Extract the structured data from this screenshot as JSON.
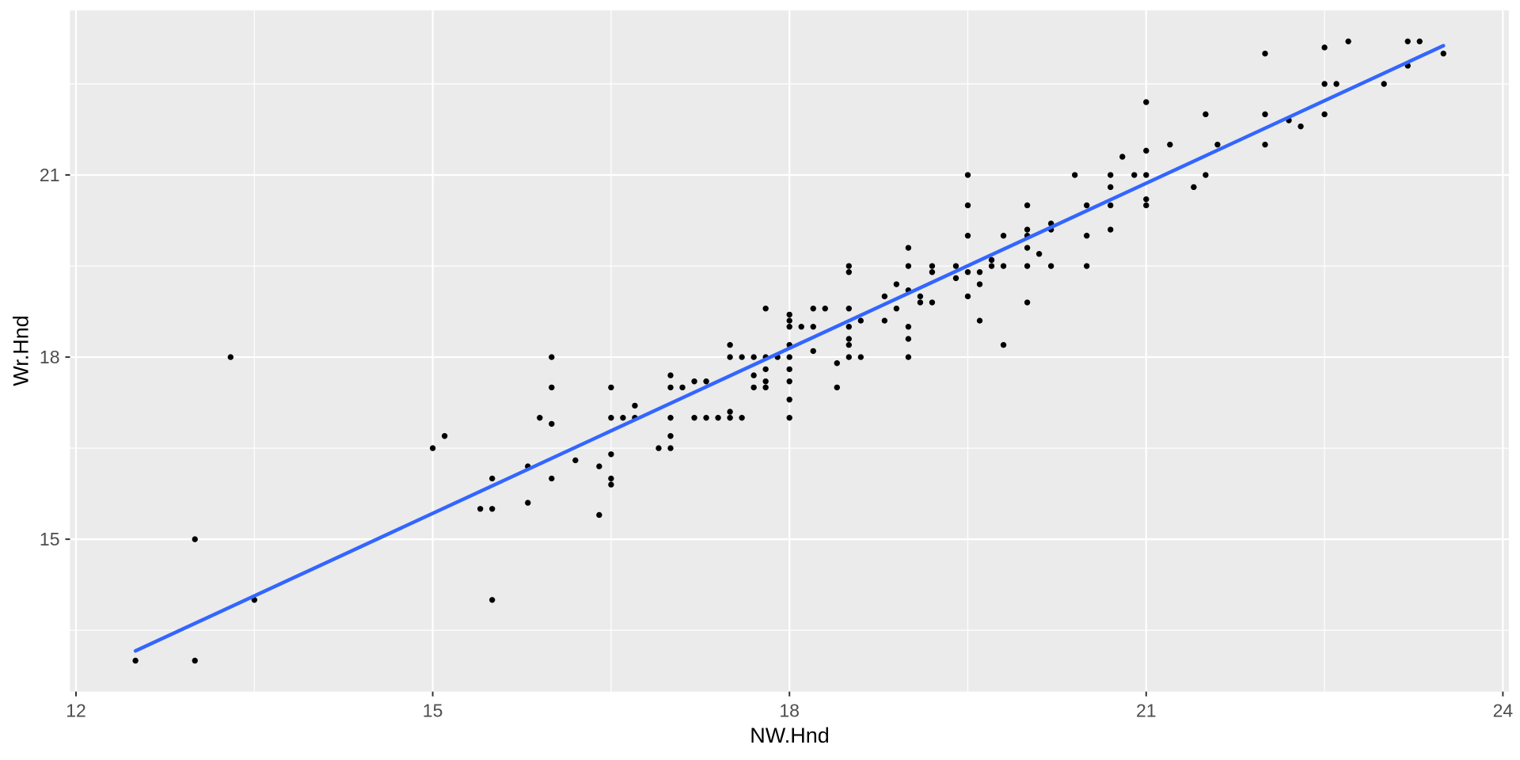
{
  "figure": {
    "background": "#FFFFFF"
  },
  "chart_data": {
    "type": "scatter",
    "title": "",
    "xlabel": "NW.Hnd",
    "ylabel": "Wr.Hnd",
    "x_breaks": [
      12,
      15,
      18,
      21,
      24
    ],
    "x_tick_labels": [
      "12",
      "15",
      "18",
      "21",
      "24"
    ],
    "x_minor_breaks": [
      13.5,
      16.5,
      19.5,
      22.5
    ],
    "y_breaks": [
      15,
      18,
      21
    ],
    "y_tick_labels": [
      "15",
      "18",
      "21"
    ],
    "y_minor_breaks": [
      13.5,
      16.5,
      19.5,
      22.5
    ],
    "xlim": [
      11.95,
      24.05
    ],
    "ylim": [
      12.49,
      23.71
    ],
    "grid": "on",
    "legend": "none",
    "points": [
      [
        12.5,
        13.0
      ],
      [
        13.0,
        13.0
      ],
      [
        13.5,
        14.0
      ],
      [
        13.0,
        15.0
      ],
      [
        13.3,
        18.0
      ],
      [
        15.0,
        16.5
      ],
      [
        15.1,
        16.7
      ],
      [
        15.4,
        15.5
      ],
      [
        15.5,
        15.5
      ],
      [
        15.5,
        16.0
      ],
      [
        15.8,
        16.2
      ],
      [
        15.8,
        15.6
      ],
      [
        16.0,
        16.0
      ],
      [
        15.5,
        14.0
      ],
      [
        16.4,
        15.4
      ],
      [
        16.2,
        16.3
      ],
      [
        16.4,
        16.2
      ],
      [
        16.5,
        16.4
      ],
      [
        16.5,
        16.0
      ],
      [
        16.5,
        15.9
      ],
      [
        16.9,
        16.5
      ],
      [
        17.0,
        16.5
      ],
      [
        17.0,
        16.7
      ],
      [
        17.0,
        17.0
      ],
      [
        16.0,
        16.9
      ],
      [
        16.5,
        17.0
      ],
      [
        16.6,
        17.0
      ],
      [
        16.7,
        17.0
      ],
      [
        16.7,
        17.2
      ],
      [
        16.5,
        17.5
      ],
      [
        15.9,
        17.0
      ],
      [
        16.0,
        17.5
      ],
      [
        16.0,
        18.0
      ],
      [
        17.0,
        17.5
      ],
      [
        17.0,
        17.7
      ],
      [
        17.1,
        17.5
      ],
      [
        17.2,
        17.6
      ],
      [
        17.3,
        17.6
      ],
      [
        17.2,
        17.0
      ],
      [
        17.3,
        17.0
      ],
      [
        17.4,
        17.0
      ],
      [
        17.5,
        17.1
      ],
      [
        17.5,
        17.0
      ],
      [
        17.6,
        17.0
      ],
      [
        17.7,
        17.5
      ],
      [
        17.7,
        17.7
      ],
      [
        17.8,
        17.8
      ],
      [
        17.8,
        17.6
      ],
      [
        17.8,
        17.5
      ],
      [
        17.5,
        18.2
      ],
      [
        17.5,
        18.0
      ],
      [
        17.6,
        18.0
      ],
      [
        17.7,
        18.0
      ],
      [
        17.8,
        18.0
      ],
      [
        17.9,
        18.0
      ],
      [
        18.0,
        18.2
      ],
      [
        18.0,
        18.0
      ],
      [
        18.0,
        17.8
      ],
      [
        18.0,
        17.6
      ],
      [
        18.0,
        17.3
      ],
      [
        18.0,
        17.0
      ],
      [
        18.0,
        18.5
      ],
      [
        18.0,
        18.6
      ],
      [
        18.0,
        18.7
      ],
      [
        17.8,
        18.8
      ],
      [
        18.1,
        18.5
      ],
      [
        18.2,
        18.5
      ],
      [
        18.2,
        18.8
      ],
      [
        18.3,
        18.8
      ],
      [
        18.5,
        18.8
      ],
      [
        18.5,
        18.5
      ],
      [
        18.5,
        18.3
      ],
      [
        18.5,
        18.2
      ],
      [
        18.5,
        18.0
      ],
      [
        18.6,
        18.0
      ],
      [
        18.2,
        18.1
      ],
      [
        18.4,
        17.9
      ],
      [
        18.4,
        17.5
      ],
      [
        18.6,
        18.6
      ],
      [
        18.8,
        18.6
      ],
      [
        18.9,
        18.8
      ],
      [
        19.0,
        18.0
      ],
      [
        19.0,
        18.3
      ],
      [
        19.0,
        18.5
      ],
      [
        18.5,
        19.5
      ],
      [
        18.5,
        19.4
      ],
      [
        18.8,
        19.0
      ],
      [
        18.9,
        19.2
      ],
      [
        19.0,
        19.1
      ],
      [
        19.1,
        19.0
      ],
      [
        19.1,
        18.9
      ],
      [
        19.2,
        18.9
      ],
      [
        19.0,
        19.5
      ],
      [
        19.0,
        19.8
      ],
      [
        19.2,
        19.5
      ],
      [
        19.2,
        19.4
      ],
      [
        19.4,
        19.5
      ],
      [
        19.4,
        19.3
      ],
      [
        19.5,
        19.4
      ],
      [
        19.6,
        19.4
      ],
      [
        19.6,
        19.2
      ],
      [
        19.5,
        19.0
      ],
      [
        19.6,
        18.6
      ],
      [
        19.8,
        18.2
      ],
      [
        20.0,
        18.9
      ],
      [
        19.7,
        19.6
      ],
      [
        19.7,
        19.5
      ],
      [
        19.8,
        20.0
      ],
      [
        19.8,
        19.5
      ],
      [
        19.5,
        20.0
      ],
      [
        19.5,
        20.5
      ],
      [
        19.5,
        21.0
      ],
      [
        20.0,
        20.5
      ],
      [
        20.0,
        20.1
      ],
      [
        20.0,
        20.0
      ],
      [
        20.0,
        19.8
      ],
      [
        20.0,
        19.5
      ],
      [
        20.1,
        19.7
      ],
      [
        20.2,
        20.1
      ],
      [
        20.2,
        20.2
      ],
      [
        20.2,
        19.5
      ],
      [
        20.4,
        21.0
      ],
      [
        20.5,
        20.5
      ],
      [
        20.5,
        20.0
      ],
      [
        20.5,
        19.5
      ],
      [
        20.7,
        21.0
      ],
      [
        20.7,
        20.8
      ],
      [
        20.7,
        20.5
      ],
      [
        20.7,
        20.1
      ],
      [
        20.8,
        21.3
      ],
      [
        20.9,
        21.0
      ],
      [
        21.0,
        21.4
      ],
      [
        21.0,
        21.0
      ],
      [
        21.0,
        20.6
      ],
      [
        21.0,
        20.5
      ],
      [
        21.0,
        22.2
      ],
      [
        21.2,
        21.5
      ],
      [
        21.4,
        20.8
      ],
      [
        21.5,
        21.0
      ],
      [
        21.5,
        22.0
      ],
      [
        21.6,
        21.5
      ],
      [
        22.0,
        23.0
      ],
      [
        22.0,
        22.0
      ],
      [
        22.0,
        21.5
      ],
      [
        22.2,
        21.9
      ],
      [
        22.3,
        21.8
      ],
      [
        22.5,
        23.1
      ],
      [
        22.5,
        22.5
      ],
      [
        22.6,
        22.5
      ],
      [
        22.5,
        22.0
      ],
      [
        22.7,
        23.2
      ],
      [
        23.0,
        22.5
      ],
      [
        23.2,
        23.2
      ],
      [
        23.3,
        23.2
      ],
      [
        23.2,
        22.8
      ],
      [
        23.5,
        23.0
      ]
    ],
    "trend_line": {
      "type": "linear-fit",
      "x1": 12.5,
      "y1": 13.16,
      "x2": 23.5,
      "y2": 23.13,
      "color": "#3366FF"
    },
    "style": {
      "panel_bg": "#EBEBEB",
      "grid_color": "#FFFFFF",
      "point_color": "#000000",
      "tick_text_color": "#4D4D4D",
      "tick_mark_color": "#333333",
      "axis_title_color": "#000000"
    }
  }
}
